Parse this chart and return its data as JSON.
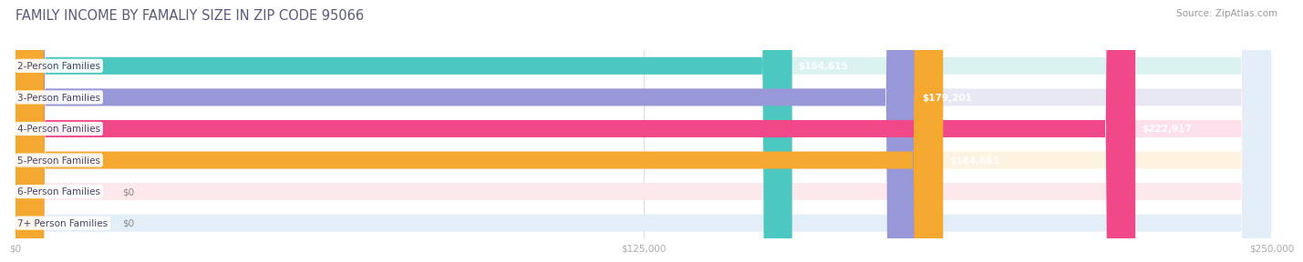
{
  "title": "FAMILY INCOME BY FAMALIY SIZE IN ZIP CODE 95066",
  "source": "Source: ZipAtlas.com",
  "categories": [
    "2-Person Families",
    "3-Person Families",
    "4-Person Families",
    "5-Person Families",
    "6-Person Families",
    "7+ Person Families"
  ],
  "values": [
    154615,
    179201,
    222917,
    184661,
    0,
    0
  ],
  "bar_colors": [
    "#4dc8c0",
    "#9898d8",
    "#f04888",
    "#f5a830",
    "#f09098",
    "#88b0e0"
  ],
  "bar_bg_colors": [
    "#daf2f0",
    "#e8e8f5",
    "#fde0ec",
    "#fef2e0",
    "#fde8ec",
    "#e4eef8"
  ],
  "value_labels": [
    "$154,615",
    "$179,201",
    "$222,917",
    "$184,661",
    "$0",
    "$0"
  ],
  "xlim": [
    0,
    250000
  ],
  "xticks": [
    0,
    125000,
    250000
  ],
  "xtick_labels": [
    "$0",
    "$125,000",
    "$250,000"
  ],
  "title_color": "#5a5a7a",
  "source_color": "#999999",
  "background_color": "#ffffff",
  "bar_height": 0.55,
  "title_fontsize": 10.5,
  "source_fontsize": 7.5,
  "label_fontsize": 7.5,
  "value_fontsize": 7.5,
  "tick_fontsize": 7.5
}
